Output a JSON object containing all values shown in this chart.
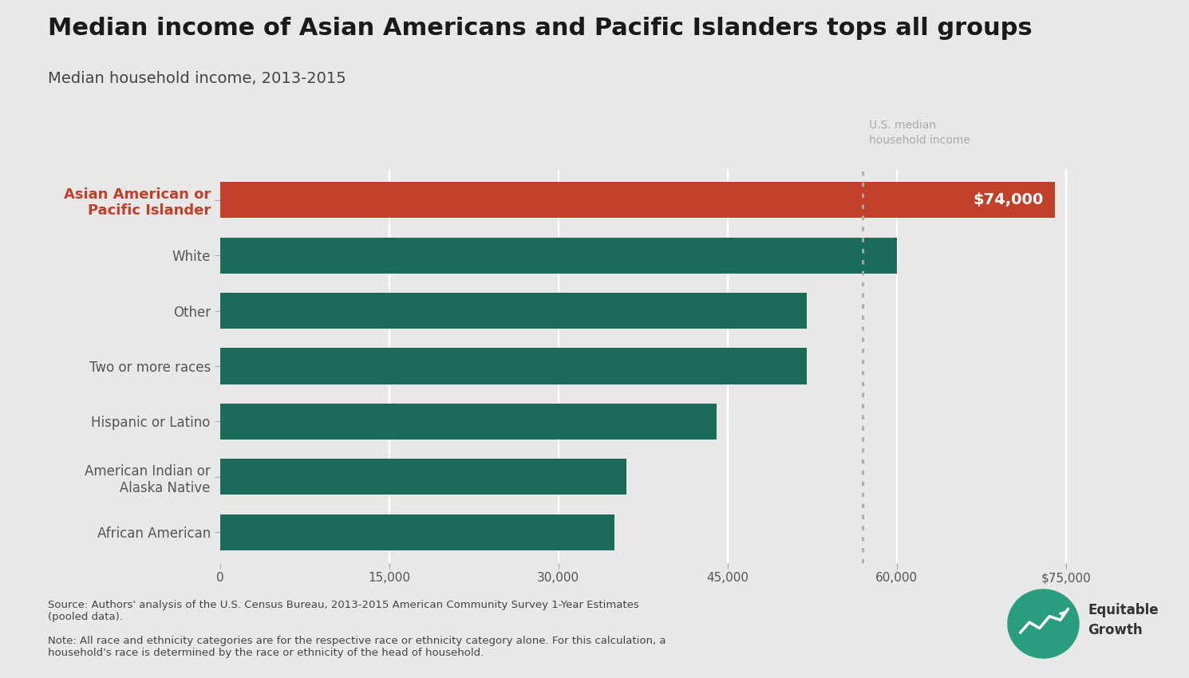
{
  "title": "Median income of Asian Americans and Pacific Islanders tops all groups",
  "subtitle": "Median household income, 2013-2015",
  "categories": [
    "Asian American or\nPacific Islander",
    "White",
    "Other",
    "Two or more races",
    "Hispanic or Latino",
    "American Indian or\n   Alaska Native",
    "African American"
  ],
  "values": [
    74000,
    60000,
    52000,
    52000,
    44000,
    36000,
    35000
  ],
  "bar_colors": [
    "#c0402a",
    "#1a6b5a",
    "#1a6b5a",
    "#1a6b5a",
    "#1a6b5a",
    "#1a6b5a",
    "#1a6b5a"
  ],
  "label_colors": [
    "#c0402a",
    "#555555",
    "#555555",
    "#555555",
    "#555555",
    "#555555",
    "#555555"
  ],
  "highlight_label": "$74,000",
  "median_line_x": 57000,
  "median_line_label": "U.S. median\nhousehold income",
  "xlim": [
    0,
    78000
  ],
  "xticks": [
    0,
    15000,
    30000,
    45000,
    60000,
    75000
  ],
  "xtick_labels": [
    "0",
    "15,000",
    "30,000",
    "45,000",
    "60,000",
    "$75,000"
  ],
  "background_color": "#e8e8e8",
  "bar_height": 0.65,
  "source_text": "Source: Authors' analysis of the U.S. Census Bureau, 2013-2015 American Community Survey 1-Year Estimates\n(pooled data).",
  "note_text": "Note: All race and ethnicity categories are for the respective race or ethnicity category alone. For this calculation, a\nhousehold's race is determined by the race or ethnicity of the head of household."
}
